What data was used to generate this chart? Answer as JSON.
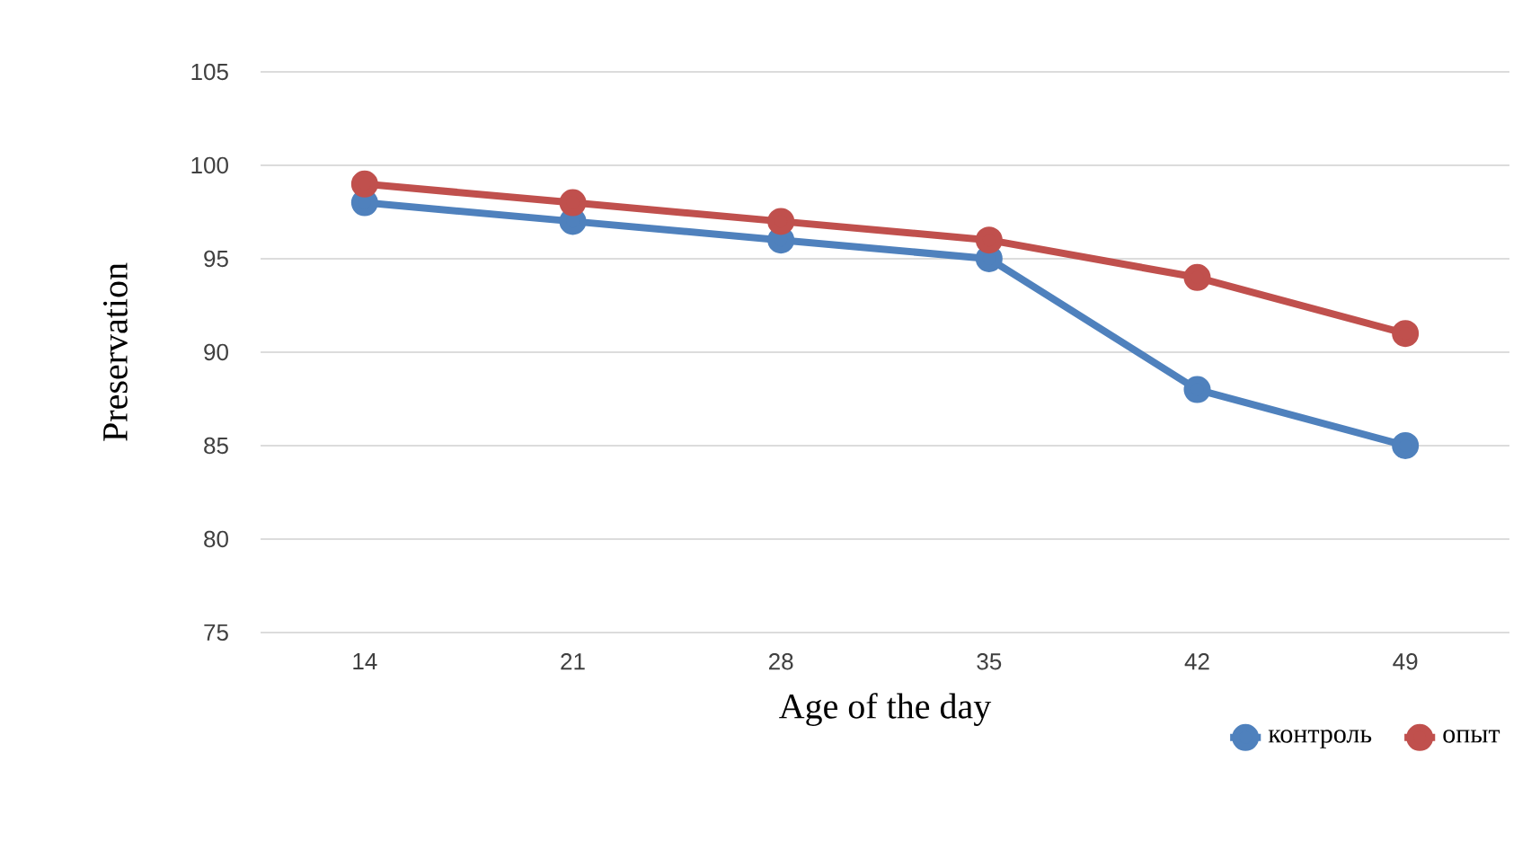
{
  "chart_data": {
    "type": "line",
    "xlabel": "Age of the day",
    "ylabel": "Preservation",
    "categories": [
      "14",
      "21",
      "28",
      "35",
      "42",
      "49"
    ],
    "series": [
      {
        "name": "контроль",
        "color": "#4f81bd",
        "values": [
          98,
          97,
          96,
          95,
          88,
          85
        ]
      },
      {
        "name": "опыт",
        "color": "#c0504d",
        "values": [
          99,
          98,
          97,
          96,
          94,
          91
        ]
      }
    ],
    "ylim": [
      75,
      105
    ],
    "yticks": [
      75,
      80,
      85,
      90,
      95,
      100,
      105
    ],
    "grid": "y",
    "legend": "bottom right",
    "marker": "circle"
  }
}
